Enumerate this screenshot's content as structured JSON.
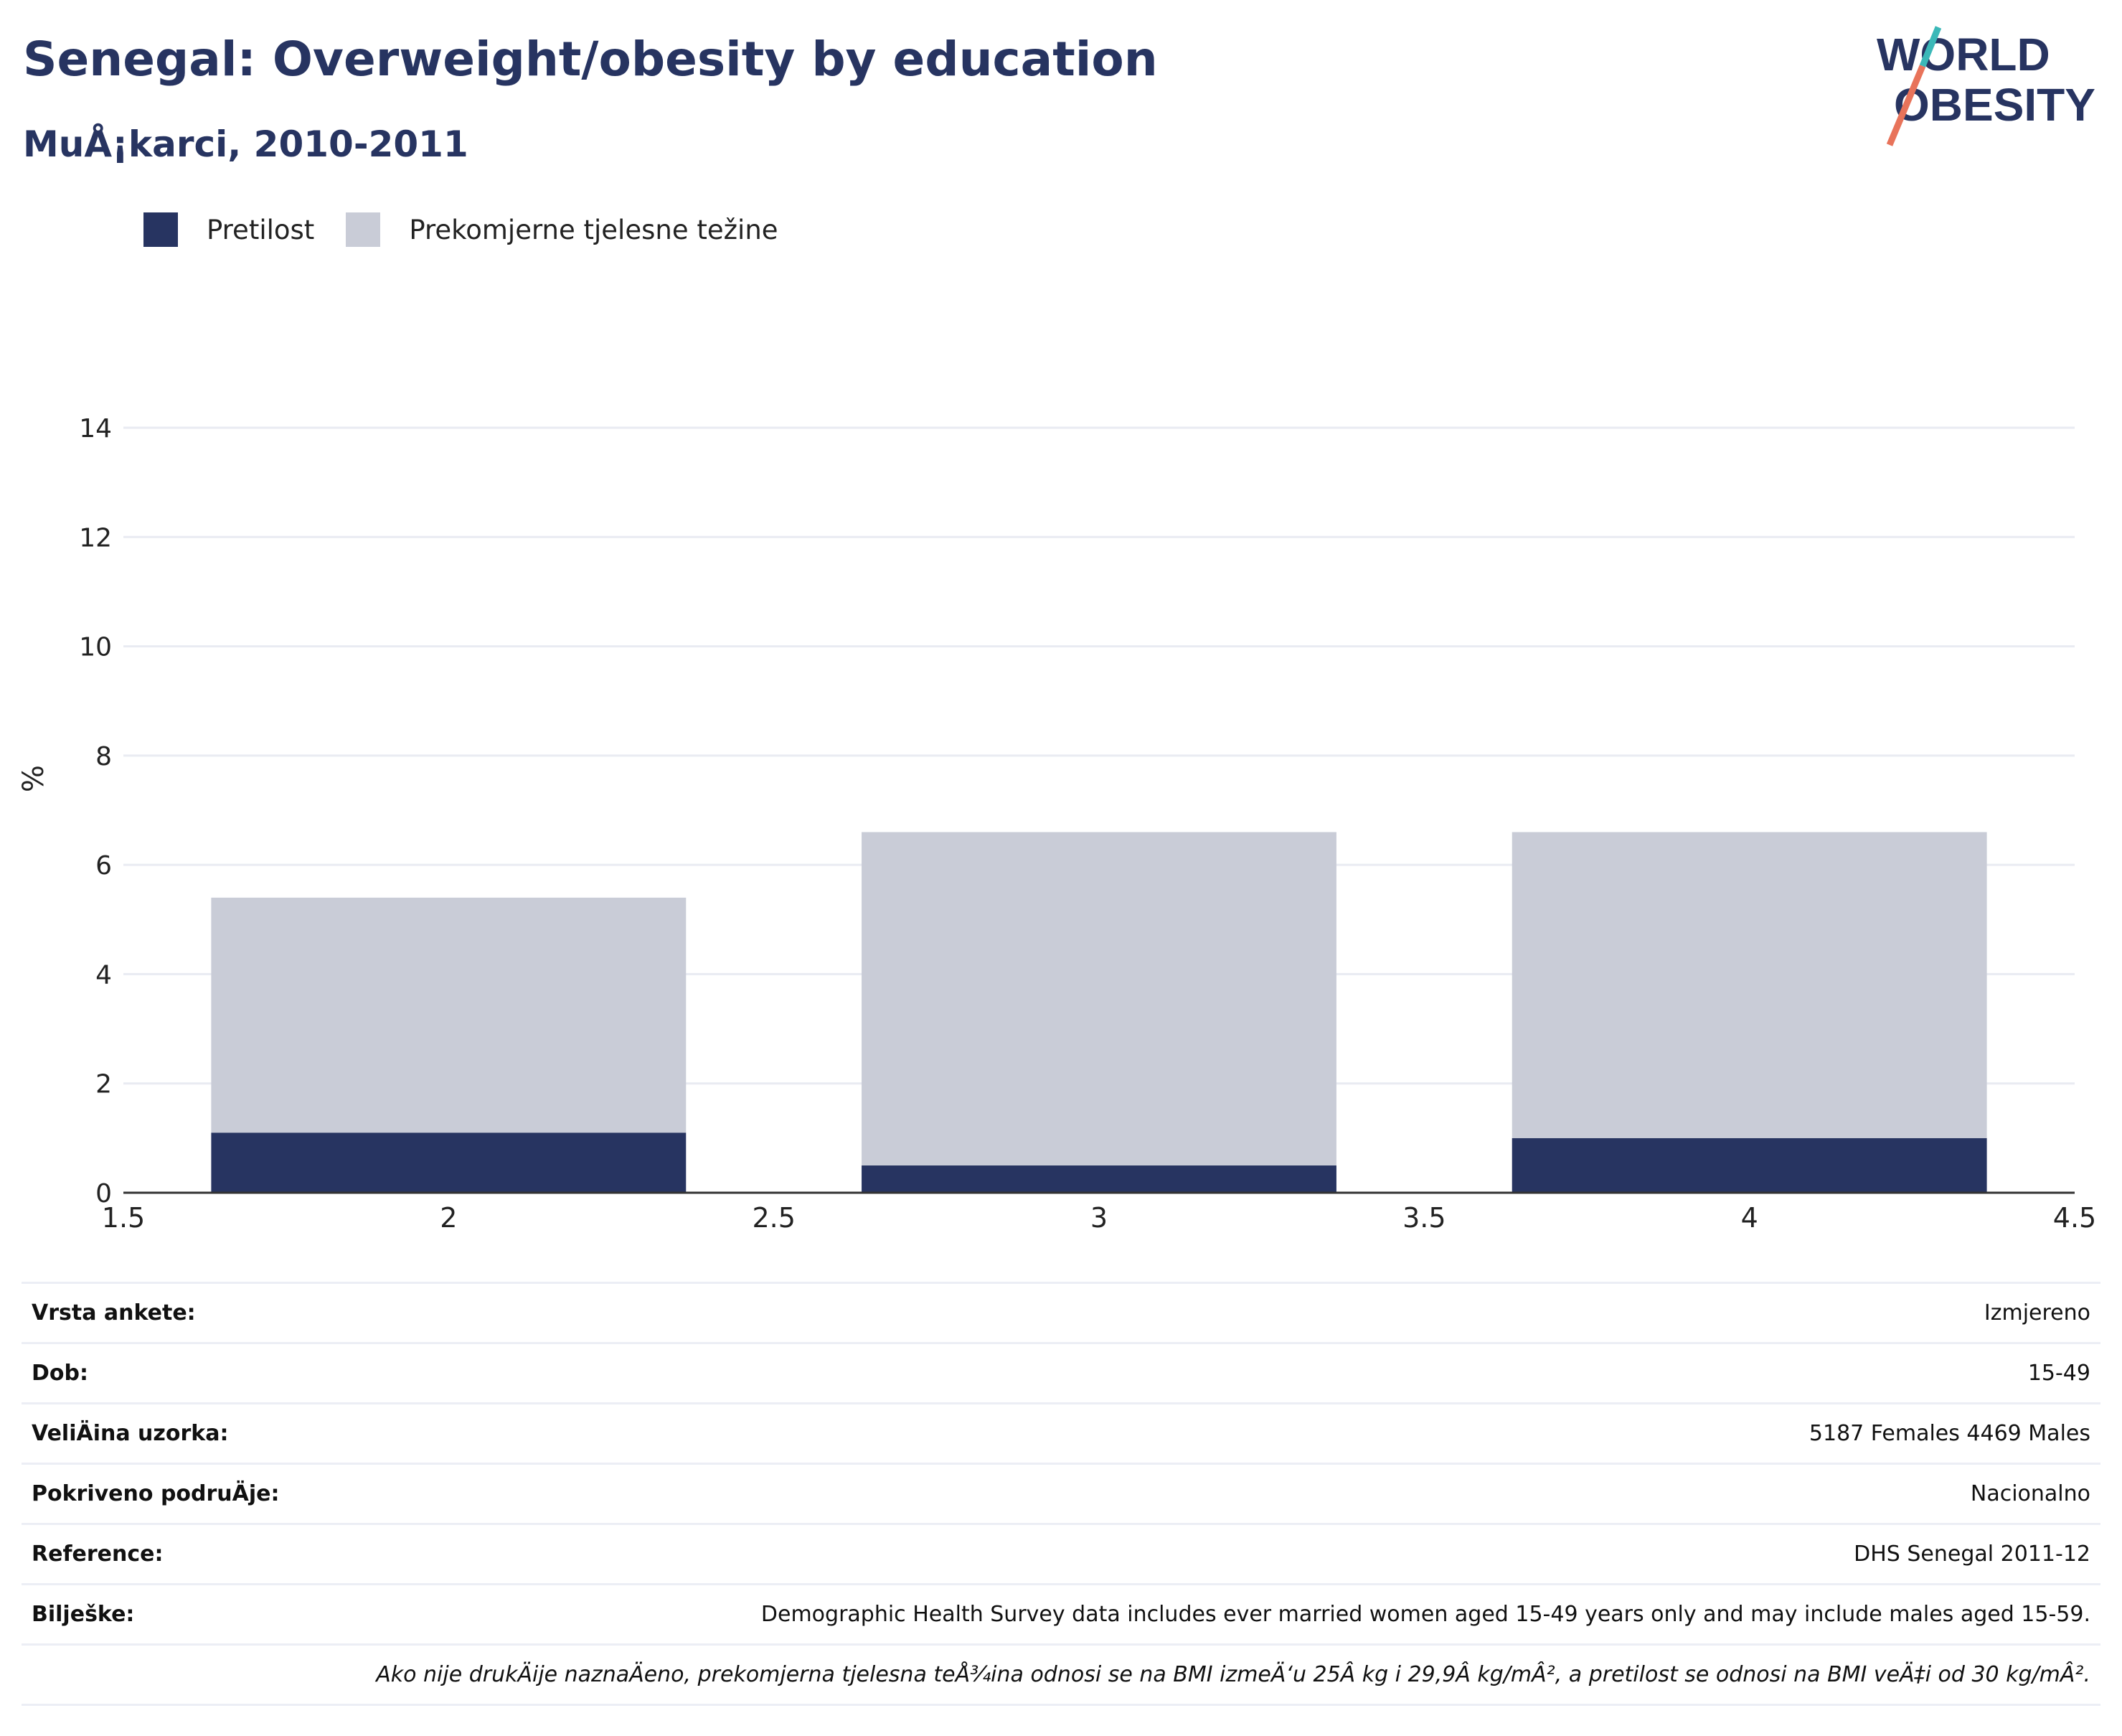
{
  "header": {
    "title": "Senegal: Overweight/obesity by education",
    "subtitle": "MuÅ¡karci, 2010-2011"
  },
  "logo": {
    "line1": "WORLD",
    "line2": "OBESITY"
  },
  "colors": {
    "obesity": "#273461",
    "overweight": "#c9ccd7",
    "title": "#273461",
    "accent_teal": "#3bb8b8",
    "accent_coral": "#e8735a"
  },
  "chart_data": {
    "type": "bar",
    "stacked": true,
    "x": [
      2,
      3,
      4
    ],
    "xlim": [
      1.5,
      4.5
    ],
    "xticks": [
      "1.5",
      "2",
      "2.5",
      "3",
      "3.5",
      "4",
      "4.5"
    ],
    "ylim": [
      0,
      14
    ],
    "yticks": [
      "0",
      "2",
      "4",
      "6",
      "8",
      "10",
      "12",
      "14"
    ],
    "ylabel": "%",
    "xlabel": "",
    "grid": true,
    "legend_position": "top-left",
    "series": [
      {
        "name": "Pretilost",
        "values": [
          1.1,
          0.5,
          1.0
        ]
      },
      {
        "name": "Prekomjerne tjelesne težine",
        "values": [
          4.3,
          6.1,
          5.6
        ]
      }
    ]
  },
  "info": {
    "rows": [
      {
        "label": "Vrsta ankete:",
        "value": "Izmjereno"
      },
      {
        "label": "Dob:",
        "value": "15-49"
      },
      {
        "label": "VeliÄ\u001dina uzorka:",
        "value": "5187 Females 4469 Males"
      },
      {
        "label": "Pokriveno podruÄ\u001dje:",
        "value": "Nacionalno"
      },
      {
        "label": "Reference:",
        "value": "DHS Senegal 2011-12"
      },
      {
        "label": "Bilješke:",
        "value": "Demographic Health Survey data includes ever married women aged 15-49 years only and may include males aged 15-59."
      }
    ],
    "note": "Ako nije drukÄ\u001dije naznaÄ\u001deno, prekomjerna tjelesna teÅ¾ina odnosi se na BMI izmeÄ‘u 25Â kg i 29,9Â kg/mÂ², a pretilost se odnosi na BMI veÄ‡i od 30 kg/mÂ²."
  }
}
